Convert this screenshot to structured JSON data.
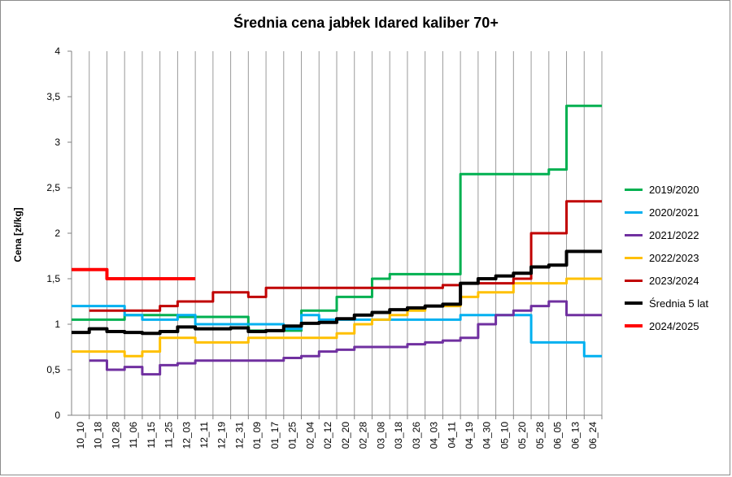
{
  "chart_data": {
    "type": "line",
    "title": "Średnia cena jabłek Idared kaliber 70+",
    "ylabel": "Cena [zł/kg]",
    "xlabel": "",
    "ylim": [
      0,
      4
    ],
    "yticks": [
      "0",
      "0,5",
      "1",
      "1,5",
      "2",
      "2,5",
      "3",
      "3,5",
      "4"
    ],
    "grid": "vertical",
    "legend_position": "right",
    "x": [
      "10_10",
      "10_18",
      "10_28",
      "11_06",
      "11_15",
      "11_25",
      "12_03",
      "12_11",
      "12_19",
      "12_31",
      "01_09",
      "01_17",
      "01_25",
      "02_04",
      "02_12",
      "02_20",
      "02_28",
      "03_08",
      "03_18",
      "03_26",
      "04_03",
      "04_11",
      "04_19",
      "04_30",
      "05_10",
      "05_20",
      "05_28",
      "06_05",
      "06_13",
      "06_24"
    ],
    "series": [
      {
        "name": "2019/2020",
        "color": "#00b050",
        "width": 3,
        "values": [
          1.05,
          1.05,
          1.05,
          1.1,
          1.1,
          1.1,
          1.08,
          1.08,
          1.08,
          1.08,
          0.93,
          0.93,
          0.93,
          1.15,
          1.15,
          1.3,
          1.3,
          1.5,
          1.55,
          1.55,
          1.55,
          1.55,
          2.65,
          2.65,
          2.65,
          2.65,
          2.65,
          2.7,
          3.4,
          3.4
        ]
      },
      {
        "name": "2020/2021",
        "color": "#00b0f0",
        "width": 3,
        "values": [
          1.2,
          1.2,
          1.2,
          1.1,
          1.05,
          1.05,
          1.1,
          1.0,
          1.0,
          1.0,
          1.0,
          1.0,
          0.95,
          1.1,
          1.05,
          1.05,
          1.05,
          1.05,
          1.05,
          1.05,
          1.05,
          1.05,
          1.1,
          1.1,
          1.1,
          1.1,
          0.8,
          0.8,
          0.8,
          0.65
        ]
      },
      {
        "name": "2021/2022",
        "color": "#7030a0",
        "width": 3,
        "values": [
          null,
          0.6,
          0.5,
          0.53,
          0.45,
          0.55,
          0.57,
          0.6,
          0.6,
          0.6,
          0.6,
          0.6,
          0.63,
          0.65,
          0.7,
          0.72,
          0.75,
          0.75,
          0.75,
          0.78,
          0.8,
          0.82,
          0.85,
          1.0,
          1.1,
          1.15,
          1.2,
          1.25,
          1.1,
          1.1
        ]
      },
      {
        "name": "2022/2023",
        "color": "#ffc000",
        "width": 3,
        "values": [
          0.7,
          0.7,
          0.7,
          0.65,
          0.7,
          0.85,
          0.85,
          0.8,
          0.8,
          0.8,
          0.85,
          0.85,
          0.85,
          0.85,
          0.85,
          0.9,
          1.0,
          1.05,
          1.1,
          1.15,
          1.2,
          1.2,
          1.3,
          1.35,
          1.35,
          1.45,
          1.45,
          1.45,
          1.5,
          1.5
        ]
      },
      {
        "name": "2023/2024",
        "color": "#c00000",
        "width": 3,
        "values": [
          null,
          1.15,
          1.15,
          1.15,
          1.15,
          1.2,
          1.25,
          1.25,
          1.35,
          1.35,
          1.3,
          1.4,
          1.4,
          1.4,
          1.4,
          1.4,
          1.4,
          1.4,
          1.4,
          1.4,
          1.4,
          1.43,
          1.45,
          1.45,
          1.45,
          1.5,
          2.0,
          2.0,
          2.35,
          2.35
        ]
      },
      {
        "name": "Średnia 5 lat",
        "color": "#000000",
        "width": 4,
        "values": [
          0.91,
          0.95,
          0.92,
          0.91,
          0.9,
          0.92,
          0.97,
          0.95,
          0.95,
          0.96,
          0.92,
          0.93,
          0.98,
          1.01,
          1.02,
          1.06,
          1.1,
          1.13,
          1.16,
          1.18,
          1.2,
          1.22,
          1.45,
          1.5,
          1.53,
          1.56,
          1.63,
          1.65,
          1.8,
          1.8
        ]
      },
      {
        "name": "2024/2025",
        "color": "#ff0000",
        "width": 4,
        "values": [
          1.6,
          1.6,
          1.5,
          1.5,
          1.5,
          1.5,
          1.5,
          null,
          null,
          null,
          null,
          null,
          null,
          null,
          null,
          null,
          null,
          null,
          null,
          null,
          null,
          null,
          null,
          null,
          null,
          null,
          null,
          null,
          null,
          null
        ]
      }
    ]
  }
}
